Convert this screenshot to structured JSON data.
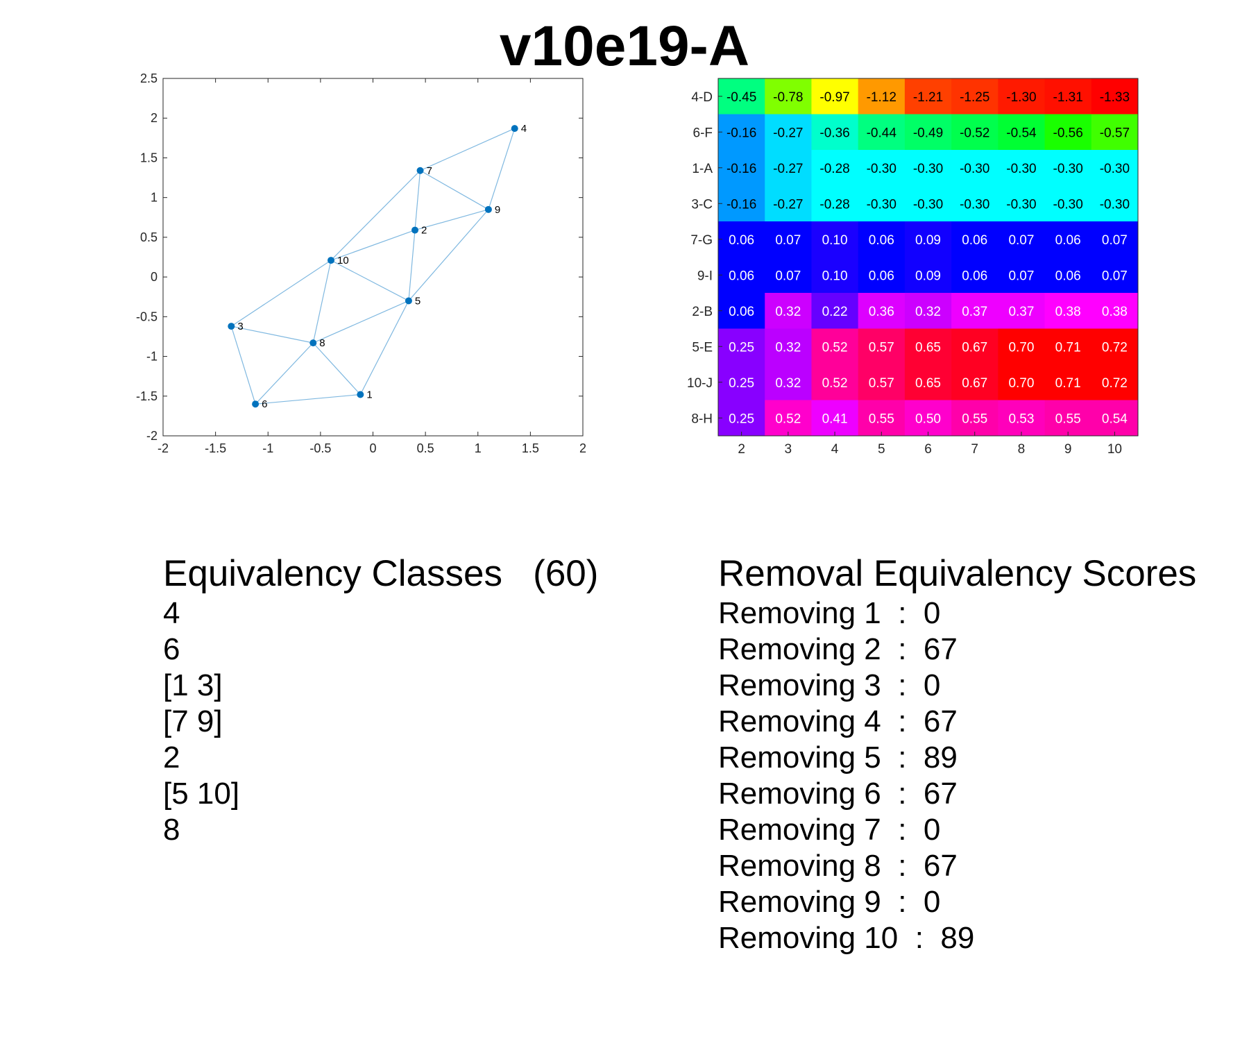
{
  "title": "v10e19-A",
  "graph": {
    "xlim": [
      -2,
      2
    ],
    "ylim": [
      -2,
      2.5
    ],
    "xticks": [
      "-2",
      "-1.5",
      "-1",
      "-0.5",
      "0",
      "0.5",
      "1",
      "1.5",
      "2"
    ],
    "yticks": [
      "-2",
      "-1.5",
      "-1",
      "-0.5",
      "0",
      "0.5",
      "1",
      "1.5",
      "2",
      "2.5"
    ],
    "node_color": "#0072bd",
    "edge_color": "#7fb8e0",
    "nodes": [
      {
        "id": "1",
        "x": -0.12,
        "y": -1.48
      },
      {
        "id": "2",
        "x": 0.4,
        "y": 0.59
      },
      {
        "id": "3",
        "x": -1.35,
        "y": -0.62
      },
      {
        "id": "4",
        "x": 1.35,
        "y": 1.87
      },
      {
        "id": "5",
        "x": 0.34,
        "y": -0.3
      },
      {
        "id": "6",
        "x": -1.12,
        "y": -1.6
      },
      {
        "id": "7",
        "x": 0.45,
        "y": 1.34
      },
      {
        "id": "8",
        "x": -0.57,
        "y": -0.83
      },
      {
        "id": "9",
        "x": 1.1,
        "y": 0.85
      },
      {
        "id": "10",
        "x": -0.4,
        "y": 0.21
      }
    ],
    "edges": [
      [
        "4",
        "7"
      ],
      [
        "4",
        "9"
      ],
      [
        "7",
        "9"
      ],
      [
        "7",
        "2"
      ],
      [
        "7",
        "10"
      ],
      [
        "2",
        "9"
      ],
      [
        "2",
        "10"
      ],
      [
        "2",
        "5"
      ],
      [
        "9",
        "5"
      ],
      [
        "10",
        "5"
      ],
      [
        "10",
        "3"
      ],
      [
        "10",
        "8"
      ],
      [
        "5",
        "8"
      ],
      [
        "5",
        "1"
      ],
      [
        "3",
        "8"
      ],
      [
        "3",
        "6"
      ],
      [
        "8",
        "6"
      ],
      [
        "8",
        "1"
      ],
      [
        "6",
        "1"
      ]
    ]
  },
  "heatmap": {
    "row_labels": [
      "4-D",
      "6-F",
      "1-A",
      "3-C",
      "7-G",
      "9-I",
      "2-B",
      "5-E",
      "10-J",
      "8-H"
    ],
    "col_labels": [
      "2",
      "3",
      "4",
      "5",
      "6",
      "7",
      "8",
      "9",
      "10"
    ],
    "values": [
      [
        "-0.45",
        "-0.78",
        "-0.97",
        "-1.12",
        "-1.21",
        "-1.25",
        "-1.30",
        "-1.31",
        "-1.33"
      ],
      [
        "-0.16",
        "-0.27",
        "-0.36",
        "-0.44",
        "-0.49",
        "-0.52",
        "-0.54",
        "-0.56",
        "-0.57"
      ],
      [
        "-0.16",
        "-0.27",
        "-0.28",
        "-0.30",
        "-0.30",
        "-0.30",
        "-0.30",
        "-0.30",
        "-0.30"
      ],
      [
        "-0.16",
        "-0.27",
        "-0.28",
        "-0.30",
        "-0.30",
        "-0.30",
        "-0.30",
        "-0.30",
        "-0.30"
      ],
      [
        "0.06",
        "0.07",
        "0.10",
        "0.06",
        "0.09",
        "0.06",
        "0.07",
        "0.06",
        "0.07"
      ],
      [
        "0.06",
        "0.07",
        "0.10",
        "0.06",
        "0.09",
        "0.06",
        "0.07",
        "0.06",
        "0.07"
      ],
      [
        "0.06",
        "0.32",
        "0.22",
        "0.36",
        "0.32",
        "0.37",
        "0.37",
        "0.38",
        "0.38"
      ],
      [
        "0.25",
        "0.32",
        "0.52",
        "0.57",
        "0.65",
        "0.67",
        "0.70",
        "0.71",
        "0.72"
      ],
      [
        "0.25",
        "0.32",
        "0.52",
        "0.57",
        "0.65",
        "0.67",
        "0.70",
        "0.71",
        "0.72"
      ],
      [
        "0.25",
        "0.52",
        "0.41",
        "0.55",
        "0.50",
        "0.55",
        "0.53",
        "0.55",
        "0.54"
      ]
    ],
    "colors": [
      [
        "#00ff80",
        "#80ff00",
        "#ffff00",
        "#ff9900",
        "#ff4000",
        "#ff3300",
        "#ff1a00",
        "#ff1000",
        "#ff0000"
      ],
      [
        "#0099ff",
        "#00ddff",
        "#00ffcc",
        "#00ff80",
        "#00ff66",
        "#00ff4d",
        "#00ff33",
        "#1aff00",
        "#40ff00"
      ],
      [
        "#0099ff",
        "#00ddff",
        "#00ffff",
        "#00ffff",
        "#00ffff",
        "#00ffff",
        "#00ffff",
        "#00ffff",
        "#00ffff"
      ],
      [
        "#0099ff",
        "#00ddff",
        "#00ffff",
        "#00ffff",
        "#00ffff",
        "#00ffff",
        "#00ffff",
        "#00ffff",
        "#00ffff"
      ],
      [
        "#0000ff",
        "#0000ff",
        "#1a00ff",
        "#0000ff",
        "#1100ff",
        "#0000ff",
        "#0000ff",
        "#0000ff",
        "#0000ff"
      ],
      [
        "#0000ff",
        "#0000ff",
        "#1a00ff",
        "#0000ff",
        "#1100ff",
        "#0000ff",
        "#0000ff",
        "#0000ff",
        "#0000ff"
      ],
      [
        "#0000ff",
        "#cc00ff",
        "#6600ff",
        "#dd00ff",
        "#cc00ff",
        "#ee00ff",
        "#ee00ff",
        "#ff00ff",
        "#ff00ff"
      ],
      [
        "#8800ff",
        "#bb00ff",
        "#ff0099",
        "#ff0066",
        "#ff0033",
        "#ff0022",
        "#ff0000",
        "#ff0000",
        "#ff0000"
      ],
      [
        "#8800ff",
        "#bb00ff",
        "#ff0099",
        "#ff0066",
        "#ff0033",
        "#ff0022",
        "#ff0000",
        "#ff0000",
        "#ff0000"
      ],
      [
        "#8800ff",
        "#ff00cc",
        "#ee00ff",
        "#ff00aa",
        "#ff00cc",
        "#ff00aa",
        "#ff00bb",
        "#ff00aa",
        "#ff00aa"
      ]
    ],
    "text_colors": [
      [
        "#000",
        "#000",
        "#000",
        "#000",
        "#000",
        "#000",
        "#000",
        "#000",
        "#000"
      ],
      [
        "#000",
        "#000",
        "#000",
        "#000",
        "#000",
        "#000",
        "#000",
        "#000",
        "#000"
      ],
      [
        "#000",
        "#000",
        "#000",
        "#000",
        "#000",
        "#000",
        "#000",
        "#000",
        "#000"
      ],
      [
        "#000",
        "#000",
        "#000",
        "#000",
        "#000",
        "#000",
        "#000",
        "#000",
        "#000"
      ],
      [
        "#fff",
        "#fff",
        "#fff",
        "#fff",
        "#fff",
        "#fff",
        "#fff",
        "#fff",
        "#fff"
      ],
      [
        "#fff",
        "#fff",
        "#fff",
        "#fff",
        "#fff",
        "#fff",
        "#fff",
        "#fff",
        "#fff"
      ],
      [
        "#fff",
        "#fff",
        "#fff",
        "#fff",
        "#fff",
        "#fff",
        "#fff",
        "#fff",
        "#fff"
      ],
      [
        "#fff",
        "#fff",
        "#fff",
        "#fff",
        "#fff",
        "#fff",
        "#fff",
        "#fff",
        "#fff"
      ],
      [
        "#fff",
        "#fff",
        "#fff",
        "#fff",
        "#fff",
        "#fff",
        "#fff",
        "#fff",
        "#fff"
      ],
      [
        "#fff",
        "#fff",
        "#fff",
        "#fff",
        "#fff",
        "#fff",
        "#fff",
        "#fff",
        "#fff"
      ]
    ]
  },
  "equivalency": {
    "heading": "Equivalency Classes   (60)",
    "items": [
      "4",
      "6",
      "[1 3]",
      "[7 9]",
      "2",
      "[5 10]",
      "8"
    ]
  },
  "removal": {
    "heading": "Removal Equivalency Scores",
    "items": [
      "Removing 1  :  0",
      "Removing 2  :  67",
      "Removing 3  :  0",
      "Removing 4  :  67",
      "Removing 5  :  89",
      "Removing 6  :  67",
      "Removing 7  :  0",
      "Removing 8  :  67",
      "Removing 9  :  0",
      "Removing 10  :  89"
    ]
  }
}
